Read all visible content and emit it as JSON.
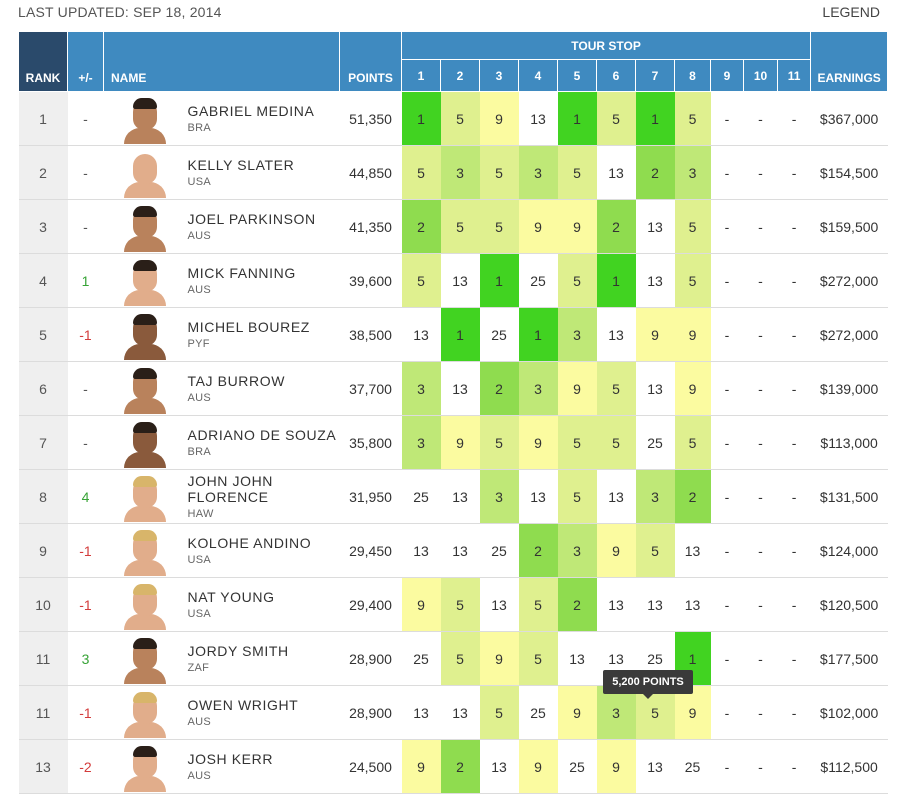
{
  "header": {
    "last_updated": "LAST UPDATED: SEP 18, 2014",
    "legend": "LEGEND"
  },
  "columns": {
    "rank": "RANK",
    "change": "+/-",
    "name": "NAME",
    "points": "POINTS",
    "tour_stop": "TOUR STOP",
    "stops": [
      "1",
      "2",
      "3",
      "4",
      "5",
      "6",
      "7",
      "8",
      "9",
      "10",
      "11"
    ],
    "earnings": "EARNINGS"
  },
  "colors": {
    "header_blue": "#3f8ac0",
    "rank_header": "#2a4a6b",
    "up": "#37a336",
    "down": "#d33b3b",
    "res_1": "#41d321",
    "res_2": "#8fdc4f",
    "res_3": "#bfe877",
    "res_5": "#dff08f",
    "res_9": "#fbfba0",
    "res_13": "#ffffff"
  },
  "rows": [
    {
      "rank": "1",
      "change": "-",
      "name": "GABRIEL MEDINA",
      "country": "BRA",
      "points": "51,350",
      "results": [
        "1",
        "5",
        "9",
        "13",
        "1",
        "5",
        "1",
        "5",
        "-",
        "-",
        "-"
      ],
      "earnings": "$367,000"
    },
    {
      "rank": "2",
      "change": "-",
      "name": "KELLY SLATER",
      "country": "USA",
      "points": "44,850",
      "results": [
        "5",
        "3",
        "5",
        "3",
        "5",
        "13",
        "2",
        "3",
        "-",
        "-",
        "-"
      ],
      "earnings": "$154,500"
    },
    {
      "rank": "3",
      "change": "-",
      "name": "JOEL PARKINSON",
      "country": "AUS",
      "points": "41,350",
      "results": [
        "2",
        "5",
        "5",
        "9",
        "9",
        "2",
        "13",
        "5",
        "-",
        "-",
        "-"
      ],
      "earnings": "$159,500"
    },
    {
      "rank": "4",
      "change": "1",
      "name": "MICK FANNING",
      "country": "AUS",
      "points": "39,600",
      "results": [
        "5",
        "13",
        "1",
        "25",
        "5",
        "1",
        "13",
        "5",
        "-",
        "-",
        "-"
      ],
      "earnings": "$272,000"
    },
    {
      "rank": "5",
      "change": "-1",
      "name": "MICHEL BOUREZ",
      "country": "PYF",
      "points": "38,500",
      "results": [
        "13",
        "1",
        "25",
        "1",
        "3",
        "13",
        "9",
        "9",
        "-",
        "-",
        "-"
      ],
      "earnings": "$272,000"
    },
    {
      "rank": "6",
      "change": "-",
      "name": "TAJ BURROW",
      "country": "AUS",
      "points": "37,700",
      "results": [
        "3",
        "13",
        "2",
        "3",
        "9",
        "5",
        "13",
        "9",
        "-",
        "-",
        "-"
      ],
      "earnings": "$139,000"
    },
    {
      "rank": "7",
      "change": "-",
      "name": "ADRIANO DE SOUZA",
      "country": "BRA",
      "points": "35,800",
      "results": [
        "3",
        "9",
        "5",
        "9",
        "5",
        "5",
        "25",
        "5",
        "-",
        "-",
        "-"
      ],
      "earnings": "$113,000"
    },
    {
      "rank": "8",
      "change": "4",
      "name": "JOHN JOHN FLORENCE",
      "country": "HAW",
      "points": "31,950",
      "results": [
        "25",
        "13",
        "3",
        "13",
        "5",
        "13",
        "3",
        "2",
        "-",
        "-",
        "-"
      ],
      "earnings": "$131,500"
    },
    {
      "rank": "9",
      "change": "-1",
      "name": "KOLOHE ANDINO",
      "country": "USA",
      "points": "29,450",
      "results": [
        "13",
        "13",
        "25",
        "2",
        "3",
        "9",
        "5",
        "13",
        "-",
        "-",
        "-"
      ],
      "earnings": "$124,000"
    },
    {
      "rank": "10",
      "change": "-1",
      "name": "NAT YOUNG",
      "country": "USA",
      "points": "29,400",
      "results": [
        "9",
        "5",
        "13",
        "5",
        "2",
        "13",
        "13",
        "13",
        "-",
        "-",
        "-"
      ],
      "earnings": "$120,500"
    },
    {
      "rank": "11",
      "change": "3",
      "name": "JORDY SMITH",
      "country": "ZAF",
      "points": "28,900",
      "results": [
        "25",
        "5",
        "9",
        "5",
        "13",
        "13",
        "25",
        "1",
        "-",
        "-",
        "-"
      ],
      "earnings": "$177,500"
    },
    {
      "rank": "11",
      "change": "-1",
      "name": "OWEN WRIGHT",
      "country": "AUS",
      "points": "28,900",
      "results": [
        "13",
        "13",
        "5",
        "25",
        "9",
        "3",
        "5",
        "9",
        "-",
        "-",
        "-"
      ],
      "earnings": "$102,000"
    },
    {
      "rank": "13",
      "change": "-2",
      "name": "JOSH KERR",
      "country": "AUS",
      "points": "24,500",
      "results": [
        "9",
        "2",
        "13",
        "9",
        "25",
        "9",
        "13",
        "25",
        "-",
        "-",
        "-"
      ],
      "earnings": "$112,500"
    }
  ],
  "tooltip": "5,200 POINTS"
}
